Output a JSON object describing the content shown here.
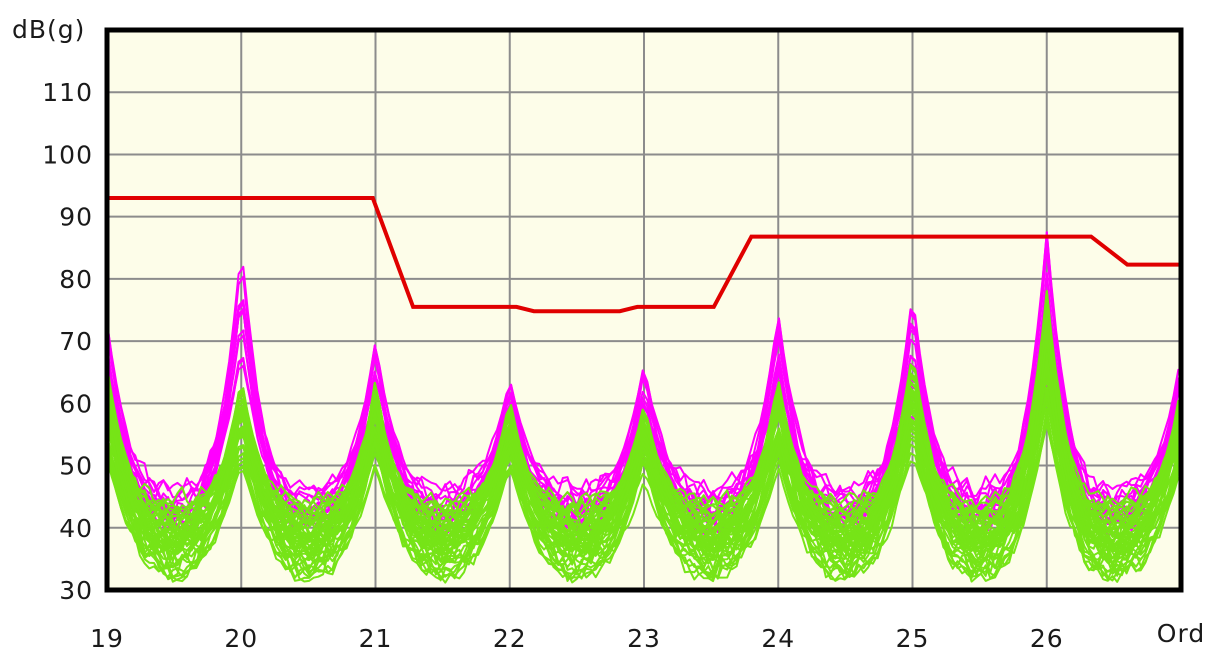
{
  "chart_data": {
    "type": "line",
    "ylabel": "dB(g)",
    "xlabel_right": "Ord",
    "xlim": [
      19,
      27
    ],
    "ylim": [
      30,
      120
    ],
    "x_tick_values": [
      19,
      20,
      21,
      22,
      23,
      24,
      25,
      26
    ],
    "x_tick_labels": [
      "19",
      "20",
      "21",
      "22",
      "23",
      "24",
      "25",
      "26"
    ],
    "x_gridlines": [
      20,
      21,
      22,
      23,
      24,
      25,
      26
    ],
    "y_tick_values": [
      30,
      40,
      50,
      60,
      70,
      80,
      90,
      100,
      110
    ],
    "y_tick_labels": [
      "30",
      "40",
      "50",
      "60",
      "70",
      "80",
      "90",
      "100",
      "110"
    ],
    "grid": true,
    "legend": "none",
    "colors": {
      "page_background": "#ffffff",
      "plot_background": "#FDFDE9",
      "grid": "#8C8C8C",
      "border": "#000000",
      "limit": "#E00000",
      "magenta": "#FF00FF",
      "green": "#76E417",
      "text": "#1A1A1A"
    },
    "series": [
      {
        "name": "limit-curve",
        "type": "step-line",
        "color_key": "limit",
        "width": 4,
        "points": [
          [
            19,
            93
          ],
          [
            20.98,
            93
          ],
          [
            21.28,
            75.5
          ],
          [
            22.05,
            75.5
          ],
          [
            22.18,
            74.8
          ],
          [
            22.82,
            74.8
          ],
          [
            22.95,
            75.5
          ],
          [
            23.52,
            75.5
          ],
          [
            23.8,
            86.8
          ],
          [
            26.33,
            86.8
          ],
          [
            26.6,
            82.3
          ],
          [
            27,
            82.3
          ]
        ]
      },
      {
        "name": "magenta-order-family",
        "type": "line-family",
        "color_key": "magenta",
        "width": 2,
        "count": 15,
        "seed": 11,
        "base_range": [
          42,
          50
        ],
        "noise_amp": 1.6,
        "min_value": 38,
        "peak_orders": [
          19,
          20,
          21,
          22,
          23,
          24,
          25,
          26,
          27
        ],
        "peak_values": [
          73,
          85.5,
          70,
          64,
          66.5,
          74.5,
          78,
          87.5,
          68
        ]
      },
      {
        "name": "green-order-family",
        "type": "line-family",
        "color_key": "green",
        "width": 2,
        "count": 48,
        "seed": 29,
        "base_range": [
          34,
          45.5
        ],
        "noise_amp": 1.8,
        "min_value": 31,
        "peak_orders": [
          19,
          20,
          21,
          22,
          23,
          24,
          25,
          26,
          27
        ],
        "peak_values": [
          66,
          64.5,
          64,
          60.8,
          60,
          64,
          68.5,
          78,
          63
        ]
      }
    ]
  }
}
